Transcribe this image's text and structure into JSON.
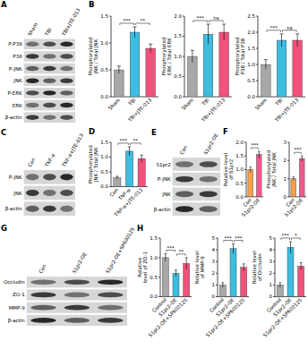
{
  "panel_labels": [
    "A",
    "B",
    "C",
    "D",
    "E",
    "F",
    "G",
    "H"
  ],
  "blots": [
    {
      "lanes": [
        "Sham",
        "TBI",
        "TBI+JTE-013"
      ],
      "rows": [
        "P-P38",
        "P38",
        "P-JNK",
        "JNK",
        "P-ERK",
        "ERK",
        "β-actin"
      ]
    },
    {
      "lanes": [
        "Con",
        "TNF-α",
        "TNF-α+JTE-013"
      ],
      "rows": [
        "P-JNK",
        "JNK",
        "β-actin"
      ]
    },
    {
      "lanes": [
        "Con",
        "S1pr2-OE"
      ],
      "rows": [
        "S1pr2",
        "P-JNK",
        "JNK",
        "β-actin"
      ]
    },
    {
      "lanes": [
        "Con",
        "S1pr2-OE",
        "S1pr2-OE+SP600125"
      ],
      "rows": [
        "Occludin",
        "ZO-1",
        "MMP-9",
        "β-actin"
      ]
    }
  ],
  "chart_data": [
    {
      "type": "bar",
      "y_label": "Phosphorylated JNK / Total JNK",
      "categories": [
        "Sham",
        "TBI",
        "TBI+JTE-013"
      ],
      "values": [
        0.5,
        1.2,
        0.9
      ],
      "errors": [
        0.07,
        0.1,
        0.08
      ],
      "colors": [
        "#a8a8a8",
        "#3dbde0",
        "#f0527c"
      ],
      "ylim": [
        0,
        1.5
      ],
      "yticks": [
        {
          "value": 0,
          "label": "0.0"
        },
        0.5,
        {
          "value": 1,
          "label": "1.0"
        },
        1.5
      ],
      "annotations": [
        {
          "text": "***",
          "between": [
            0,
            1
          ]
        },
        {
          "text": "**",
          "between": [
            1,
            2
          ]
        }
      ]
    },
    {
      "type": "bar",
      "y_label": "Phosphorylated ERK / Total ERK",
      "categories": [
        "Sham",
        "TBI",
        "TBI+JTE-013"
      ],
      "values": [
        1.0,
        1.55,
        1.6
      ],
      "errors": [
        0.15,
        0.25,
        0.2
      ],
      "colors": [
        "#a8a8a8",
        "#3dbde0",
        "#f0527c"
      ],
      "ylim": [
        0,
        2
      ],
      "yticks": [
        {
          "value": 0,
          "label": "0.0"
        },
        0.5,
        {
          "value": 1,
          "label": "1.0"
        },
        1.5,
        {
          "value": 2,
          "label": "2.0"
        }
      ],
      "annotations": [
        {
          "text": "***",
          "between": [
            0,
            1
          ]
        },
        {
          "text": "ns",
          "between": [
            1,
            2
          ]
        }
      ]
    },
    {
      "type": "bar",
      "y_label": "Phosphorylated P38 / Total P38",
      "categories": [
        "Sham",
        "TBI",
        "TBI+JTE-013"
      ],
      "values": [
        1.0,
        1.75,
        1.75
      ],
      "errors": [
        0.15,
        0.2,
        0.2
      ],
      "colors": [
        "#a8a8a8",
        "#3dbde0",
        "#f0527c"
      ],
      "ylim": [
        0,
        2.5
      ],
      "yticks": [
        {
          "value": 0,
          "label": "0.0"
        },
        0.5,
        {
          "value": 1,
          "label": "1.0"
        },
        1.5,
        {
          "value": 2,
          "label": "2.0"
        },
        2.5
      ],
      "annotations": [
        {
          "text": "***",
          "between": [
            0,
            1
          ]
        },
        {
          "text": "ns",
          "between": [
            1,
            2
          ]
        }
      ]
    },
    {
      "type": "bar",
      "y_label": "Phosphorylated JNK / Total JNK",
      "categories": [
        "Con",
        "TNF-α",
        "TNF-α+JTE-013"
      ],
      "values": [
        0.3,
        1.2,
        0.95
      ],
      "errors": [
        0.05,
        0.15,
        0.12
      ],
      "colors": [
        "#a8a8a8",
        "#3dbde0",
        "#f0527c"
      ],
      "ylim": [
        0,
        1.5
      ],
      "yticks": [
        {
          "value": 0,
          "label": "0.0"
        },
        0.5,
        {
          "value": 1,
          "label": "1.0"
        },
        1.5
      ],
      "annotations": [
        {
          "text": "***",
          "between": [
            0,
            1
          ]
        },
        {
          "text": "**",
          "between": [
            1,
            2
          ]
        }
      ]
    },
    {
      "type": "bar",
      "y_label": "Relative level of S1pr2",
      "categories": [
        "Con",
        "S1pr2-OE"
      ],
      "values": [
        1.0,
        1.55
      ],
      "errors": [
        0.1,
        0.12
      ],
      "colors": [
        "#f5a04a",
        "#ee5a8a"
      ],
      "ylim": [
        0,
        2
      ],
      "yticks": [
        {
          "value": 0,
          "label": "0.0"
        },
        0.5,
        {
          "value": 1,
          "label": "1.0"
        },
        1.5,
        {
          "value": 2,
          "label": "2.0"
        }
      ],
      "annotations": [
        {
          "text": "***",
          "between": [
            0,
            1
          ]
        }
      ]
    },
    {
      "type": "bar",
      "y_label": "Phosphorylated JNK / Total JNK",
      "categories": [
        "Con",
        "S1pr2-OE"
      ],
      "values": [
        1.0,
        2.1
      ],
      "errors": [
        0.1,
        0.15
      ],
      "colors": [
        "#f5a04a",
        "#ee5a8a"
      ],
      "ylim": [
        0,
        3
      ],
      "yticks": [
        0,
        1,
        2,
        3
      ],
      "annotations": [
        {
          "text": "***",
          "between": [
            0,
            1
          ]
        }
      ]
    },
    {
      "type": "bar",
      "y_label": "Relative level of ZO-1",
      "categories": [
        "Control",
        "S1pr2-OE",
        "S1pr2-OE+SP600125"
      ],
      "values": [
        1.0,
        0.6,
        0.85
      ],
      "errors": [
        0.1,
        0.08,
        0.15
      ],
      "colors": [
        "#a8a8a8",
        "#3dbde0",
        "#f0527c"
      ],
      "ylim": [
        0,
        1.5
      ],
      "yticks": [
        {
          "value": 0,
          "label": "0.0"
        },
        0.5,
        {
          "value": 1,
          "label": "1.0"
        },
        1.5
      ],
      "annotations": [
        {
          "text": "***",
          "between": [
            0,
            1
          ]
        },
        {
          "text": "**",
          "between": [
            1,
            2
          ]
        }
      ]
    },
    {
      "type": "bar",
      "y_label": "Relative level of MMP-9",
      "categories": [
        "Control",
        "S1pr2-OE",
        "S1pr2-OE+SP600125"
      ],
      "values": [
        1.0,
        4.1,
        2.5
      ],
      "errors": [
        0.2,
        0.4,
        0.3
      ],
      "colors": [
        "#a8a8a8",
        "#3dbde0",
        "#f0527c"
      ],
      "ylim": [
        0,
        5
      ],
      "yticks": [
        0,
        1,
        2,
        3,
        4,
        5
      ],
      "annotations": [
        {
          "text": "***",
          "between": [
            0,
            1
          ]
        },
        {
          "text": "***",
          "between": [
            1,
            2
          ]
        }
      ]
    },
    {
      "type": "bar",
      "y_label": "Relative level of Occludin",
      "categories": [
        "Control",
        "S1pr2-OE",
        "S1pr2-OE+SP600125"
      ],
      "values": [
        1.0,
        4.2,
        2.6
      ],
      "errors": [
        0.2,
        0.5,
        0.3
      ],
      "colors": [
        "#a8a8a8",
        "#3dbde0",
        "#f0527c"
      ],
      "ylim": [
        0,
        5
      ],
      "yticks": [
        0,
        1,
        2,
        3,
        4,
        5
      ],
      "annotations": [
        {
          "text": "***",
          "between": [
            0,
            1
          ]
        },
        {
          "text": "*",
          "between": [
            1,
            2
          ]
        }
      ]
    }
  ]
}
